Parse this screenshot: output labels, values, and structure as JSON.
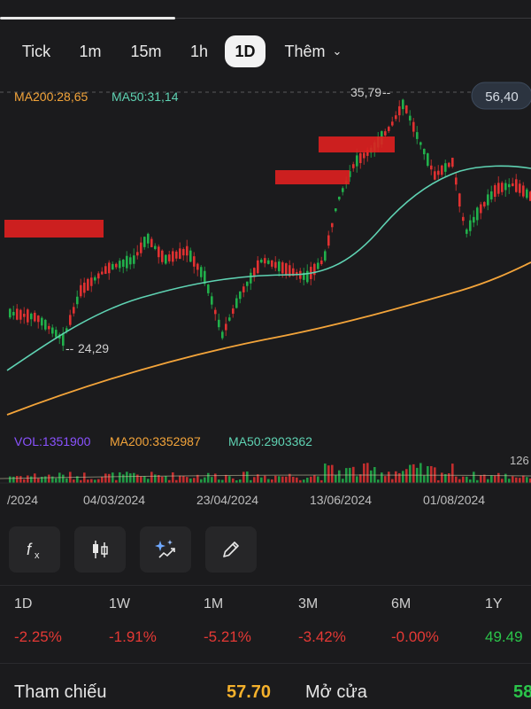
{
  "timeframes": {
    "tabs": [
      {
        "label": "Tick",
        "active": false
      },
      {
        "label": "1m",
        "active": false
      },
      {
        "label": "15m",
        "active": false
      },
      {
        "label": "1h",
        "active": false
      },
      {
        "label": "1D",
        "active": true
      },
      {
        "label": "Thêm",
        "active": false
      }
    ]
  },
  "chart": {
    "ma200_label": "MA200:28,65",
    "ma50_label": "MA50:31,14",
    "current_price_badge": "56,40",
    "high_label": "35,79",
    "low_label": "24,29",
    "volume_labels": {
      "vol": "VOL:1351900",
      "ma200": "MA200:3352987",
      "ma50": "MA50:2903362",
      "right_edge": "126"
    },
    "dates": [
      "/2024",
      "04/03/2024",
      "23/04/2024",
      "13/06/2024",
      "01/08/2024"
    ],
    "colors": {
      "up": "#21b04b",
      "down": "#e03131",
      "ma50": "#5fd3b3",
      "ma200": "#f3a43a",
      "vol_label": "#8a52ff"
    }
  },
  "tools": {
    "items": [
      {
        "icon": "function-icon"
      },
      {
        "icon": "candlestick-icon"
      },
      {
        "icon": "sparkle-chart-icon"
      },
      {
        "icon": "pencil-icon"
      }
    ]
  },
  "performance": {
    "periods": [
      {
        "label": "1D",
        "value": "-2.25%",
        "trend": "down"
      },
      {
        "label": "1W",
        "value": "-1.91%",
        "trend": "down"
      },
      {
        "label": "1M",
        "value": "-5.21%",
        "trend": "down"
      },
      {
        "label": "3M",
        "value": "-3.42%",
        "trend": "down"
      },
      {
        "label": "6M",
        "value": "-0.00%",
        "trend": "down"
      },
      {
        "label": "1Y",
        "value": "49.49",
        "trend": "up"
      }
    ]
  },
  "reference": {
    "ref_label": "Tham chiếu",
    "ref_value": "57.70",
    "open_label": "Mở cửa",
    "open_value": "58"
  }
}
